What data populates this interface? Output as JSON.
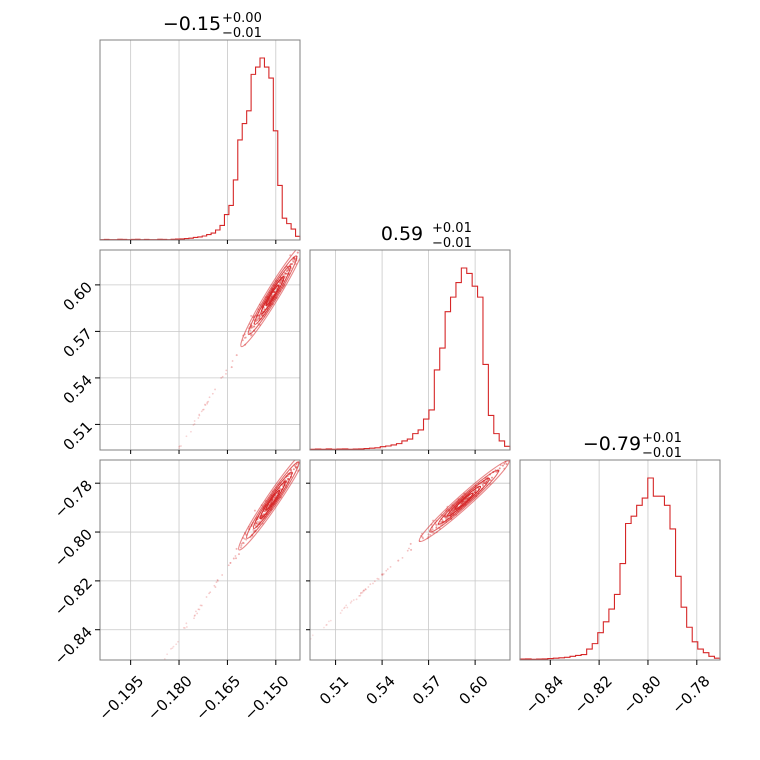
{
  "chart_data": {
    "type": "corner",
    "color": "#d62728",
    "parameters": [
      {
        "title_median": "−0.15",
        "title_plus": "+0.00",
        "title_minus": "−0.01",
        "median": -0.152,
        "range": [
          -0.2045,
          -0.1425
        ],
        "ticks": [
          -0.195,
          -0.18,
          -0.165,
          -0.15
        ],
        "tick_labels": [
          "−0.195",
          "−0.180",
          "−0.165",
          "−0.150"
        ]
      },
      {
        "title_median": "0.59",
        "title_plus": "+0.01",
        "title_minus": "−0.01",
        "median": 0.59,
        "range": [
          0.4935,
          0.6225
        ],
        "ticks": [
          0.51,
          0.54,
          0.57,
          0.6
        ],
        "tick_labels": [
          "0.51",
          "0.54",
          "0.57",
          "0.60"
        ]
      },
      {
        "title_median": "−0.79",
        "title_plus": "+0.01",
        "title_minus": "−0.01",
        "median": -0.789,
        "range": [
          -0.8524,
          -0.7705
        ],
        "ticks": [
          -0.84,
          -0.82,
          -0.8,
          -0.78
        ],
        "tick_labels": [
          "−0.84",
          "−0.82",
          "−0.80",
          "−0.78"
        ]
      }
    ],
    "histograms": [
      {
        "param": 0,
        "bins": [
          -0.2045,
          -0.1425
        ],
        "counts": [
          0.002,
          0.003,
          0.002,
          0.002,
          0.004,
          0.003,
          0.002,
          0.003,
          0.004,
          0.002,
          0.003,
          0.002,
          0.002,
          0.004,
          0.003,
          0.002,
          0.004,
          0.005,
          0.006,
          0.008,
          0.01,
          0.014,
          0.017,
          0.022,
          0.03,
          0.038,
          0.055,
          0.08,
          0.14,
          0.19,
          0.33,
          0.55,
          0.64,
          0.71,
          0.91,
          0.95,
          1.0,
          0.95,
          0.89,
          0.6,
          0.3,
          0.12,
          0.09,
          0.06,
          0.02
        ]
      },
      {
        "param": 1,
        "bins": [
          0.4935,
          0.6225
        ],
        "counts": [
          0.004,
          0.005,
          0.004,
          0.006,
          0.004,
          0.005,
          0.006,
          0.004,
          0.005,
          0.006,
          0.008,
          0.01,
          0.012,
          0.018,
          0.022,
          0.028,
          0.035,
          0.05,
          0.06,
          0.09,
          0.11,
          0.17,
          0.22,
          0.44,
          0.56,
          0.76,
          0.84,
          0.92,
          1.0,
          0.97,
          0.9,
          0.84,
          0.47,
          0.19,
          0.09,
          0.05,
          0.02
        ]
      },
      {
        "param": 2,
        "bins": [
          -0.8524,
          -0.7705
        ],
        "counts": [
          0.005,
          0.006,
          0.004,
          0.005,
          0.006,
          0.008,
          0.01,
          0.012,
          0.015,
          0.02,
          0.025,
          0.03,
          0.06,
          0.09,
          0.15,
          0.21,
          0.28,
          0.36,
          0.53,
          0.75,
          0.79,
          0.85,
          0.89,
          1.0,
          0.9,
          0.9,
          0.85,
          0.72,
          0.46,
          0.29,
          0.18,
          0.1,
          0.06,
          0.04,
          0.02,
          0.01
        ]
      }
    ],
    "scatter_2d": [
      {
        "x_param": 0,
        "y_param": 1,
        "rho": 0.985
      },
      {
        "x_param": 0,
        "y_param": 2,
        "rho": 0.985
      },
      {
        "x_param": 1,
        "y_param": 2,
        "rho": 0.985
      }
    ],
    "grid": true,
    "xlabel": "",
    "ylabel": ""
  }
}
